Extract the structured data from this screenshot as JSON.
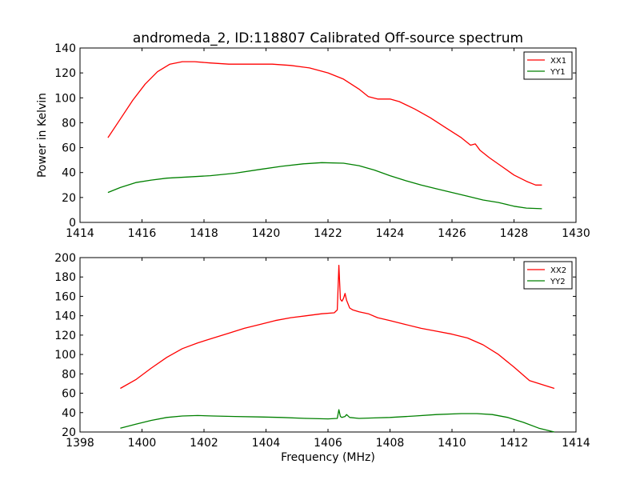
{
  "title": "andromeda_2, ID:118807 Calibrated Off-source spectrum",
  "chart_data": [
    {
      "type": "line",
      "ylabel": "Power in Kelvin",
      "xlabel": "",
      "xlim": [
        1414,
        1430
      ],
      "ylim": [
        0,
        140
      ],
      "xticks": [
        "1414",
        "1416",
        "1418",
        "1420",
        "1422",
        "1424",
        "1426",
        "1428",
        "1430"
      ],
      "yticks": [
        "0",
        "20",
        "40",
        "60",
        "80",
        "100",
        "120",
        "140"
      ],
      "grid": false,
      "legend_position": "top-right",
      "series": [
        {
          "name": "XX1",
          "color": "#ff0000",
          "x": [
            1414.9,
            1415.3,
            1415.7,
            1416.1,
            1416.5,
            1416.9,
            1417.3,
            1417.7,
            1418.2,
            1418.8,
            1419.5,
            1420.2,
            1420.8,
            1421.4,
            1422.0,
            1422.5,
            1423.0,
            1423.3,
            1423.6,
            1424.0,
            1424.3,
            1424.8,
            1425.3,
            1425.8,
            1426.3,
            1426.6,
            1426.75,
            1426.9,
            1427.2,
            1427.6,
            1428.0,
            1428.4,
            1428.7,
            1428.9
          ],
          "y": [
            68,
            83,
            98,
            111,
            121,
            127,
            129,
            129,
            128,
            127,
            127,
            127,
            126,
            124,
            120,
            115,
            107,
            101,
            99,
            99,
            97,
            91,
            84,
            76,
            68,
            62,
            63,
            58,
            52,
            45,
            38,
            33,
            30,
            30
          ]
        },
        {
          "name": "YY1",
          "color": "#008000",
          "x": [
            1414.9,
            1415.3,
            1415.8,
            1416.3,
            1416.8,
            1417.5,
            1418.2,
            1419.0,
            1419.8,
            1420.5,
            1421.2,
            1421.8,
            1422.5,
            1423.0,
            1423.5,
            1424.0,
            1424.5,
            1425.0,
            1425.5,
            1426.0,
            1426.5,
            1427.0,
            1427.5,
            1428.0,
            1428.4,
            1428.9
          ],
          "y": [
            24,
            28,
            32,
            34,
            35.5,
            36.5,
            37.5,
            39.5,
            42.5,
            45,
            47,
            48,
            47.5,
            45.5,
            42,
            37.5,
            33.5,
            30,
            27,
            24,
            21,
            18,
            16,
            13,
            11.5,
            11
          ]
        }
      ]
    },
    {
      "type": "line",
      "ylabel": "",
      "xlabel": "Frequency (MHz)",
      "xlim": [
        1398,
        1414
      ],
      "ylim": [
        20,
        200
      ],
      "xticks": [
        "1398",
        "1400",
        "1402",
        "1404",
        "1406",
        "1408",
        "1410",
        "1412",
        "1414"
      ],
      "yticks": [
        "20",
        "40",
        "60",
        "80",
        "100",
        "120",
        "140",
        "160",
        "180",
        "200"
      ],
      "grid": false,
      "legend_position": "top-right",
      "series": [
        {
          "name": "XX2",
          "color": "#ff0000",
          "x": [
            1399.3,
            1399.8,
            1400.3,
            1400.8,
            1401.3,
            1401.8,
            1402.3,
            1402.8,
            1403.3,
            1403.8,
            1404.3,
            1404.8,
            1405.3,
            1405.8,
            1406.2,
            1406.3,
            1406.35,
            1406.4,
            1406.45,
            1406.5,
            1406.55,
            1406.6,
            1406.7,
            1406.8,
            1407.0,
            1407.3,
            1407.6,
            1408.0,
            1408.5,
            1409.0,
            1409.5,
            1410.0,
            1410.5,
            1411.0,
            1411.5,
            1412.0,
            1412.5,
            1413.0,
            1413.3
          ],
          "y": [
            65,
            74,
            86,
            97,
            106,
            112,
            117,
            122,
            127,
            131,
            135,
            138,
            140,
            142,
            143,
            146,
            192,
            157,
            155,
            158,
            163,
            156,
            148,
            146,
            144,
            142,
            138,
            135,
            131,
            127,
            124,
            121,
            117,
            110,
            100,
            87,
            73,
            68,
            65
          ],
          "_note": ""
        },
        {
          "name": "YY2",
          "color": "#008000",
          "x": [
            1399.3,
            1399.8,
            1400.3,
            1400.8,
            1401.3,
            1401.8,
            1402.3,
            1403.0,
            1403.8,
            1404.5,
            1405.3,
            1406.0,
            1406.3,
            1406.35,
            1406.4,
            1406.45,
            1406.55,
            1406.6,
            1406.7,
            1407.0,
            1407.5,
            1408.0,
            1408.8,
            1409.5,
            1410.3,
            1410.8,
            1411.3,
            1411.8,
            1412.3,
            1412.8,
            1413.3
          ],
          "y": [
            24,
            28,
            32,
            35,
            36.5,
            37,
            36.5,
            36,
            35.5,
            35,
            34,
            33.5,
            34,
            43,
            36,
            35,
            36,
            38,
            35,
            34,
            34.5,
            35,
            36.5,
            38,
            39,
            39,
            38,
            35,
            30,
            24,
            20
          ]
        }
      ]
    }
  ]
}
